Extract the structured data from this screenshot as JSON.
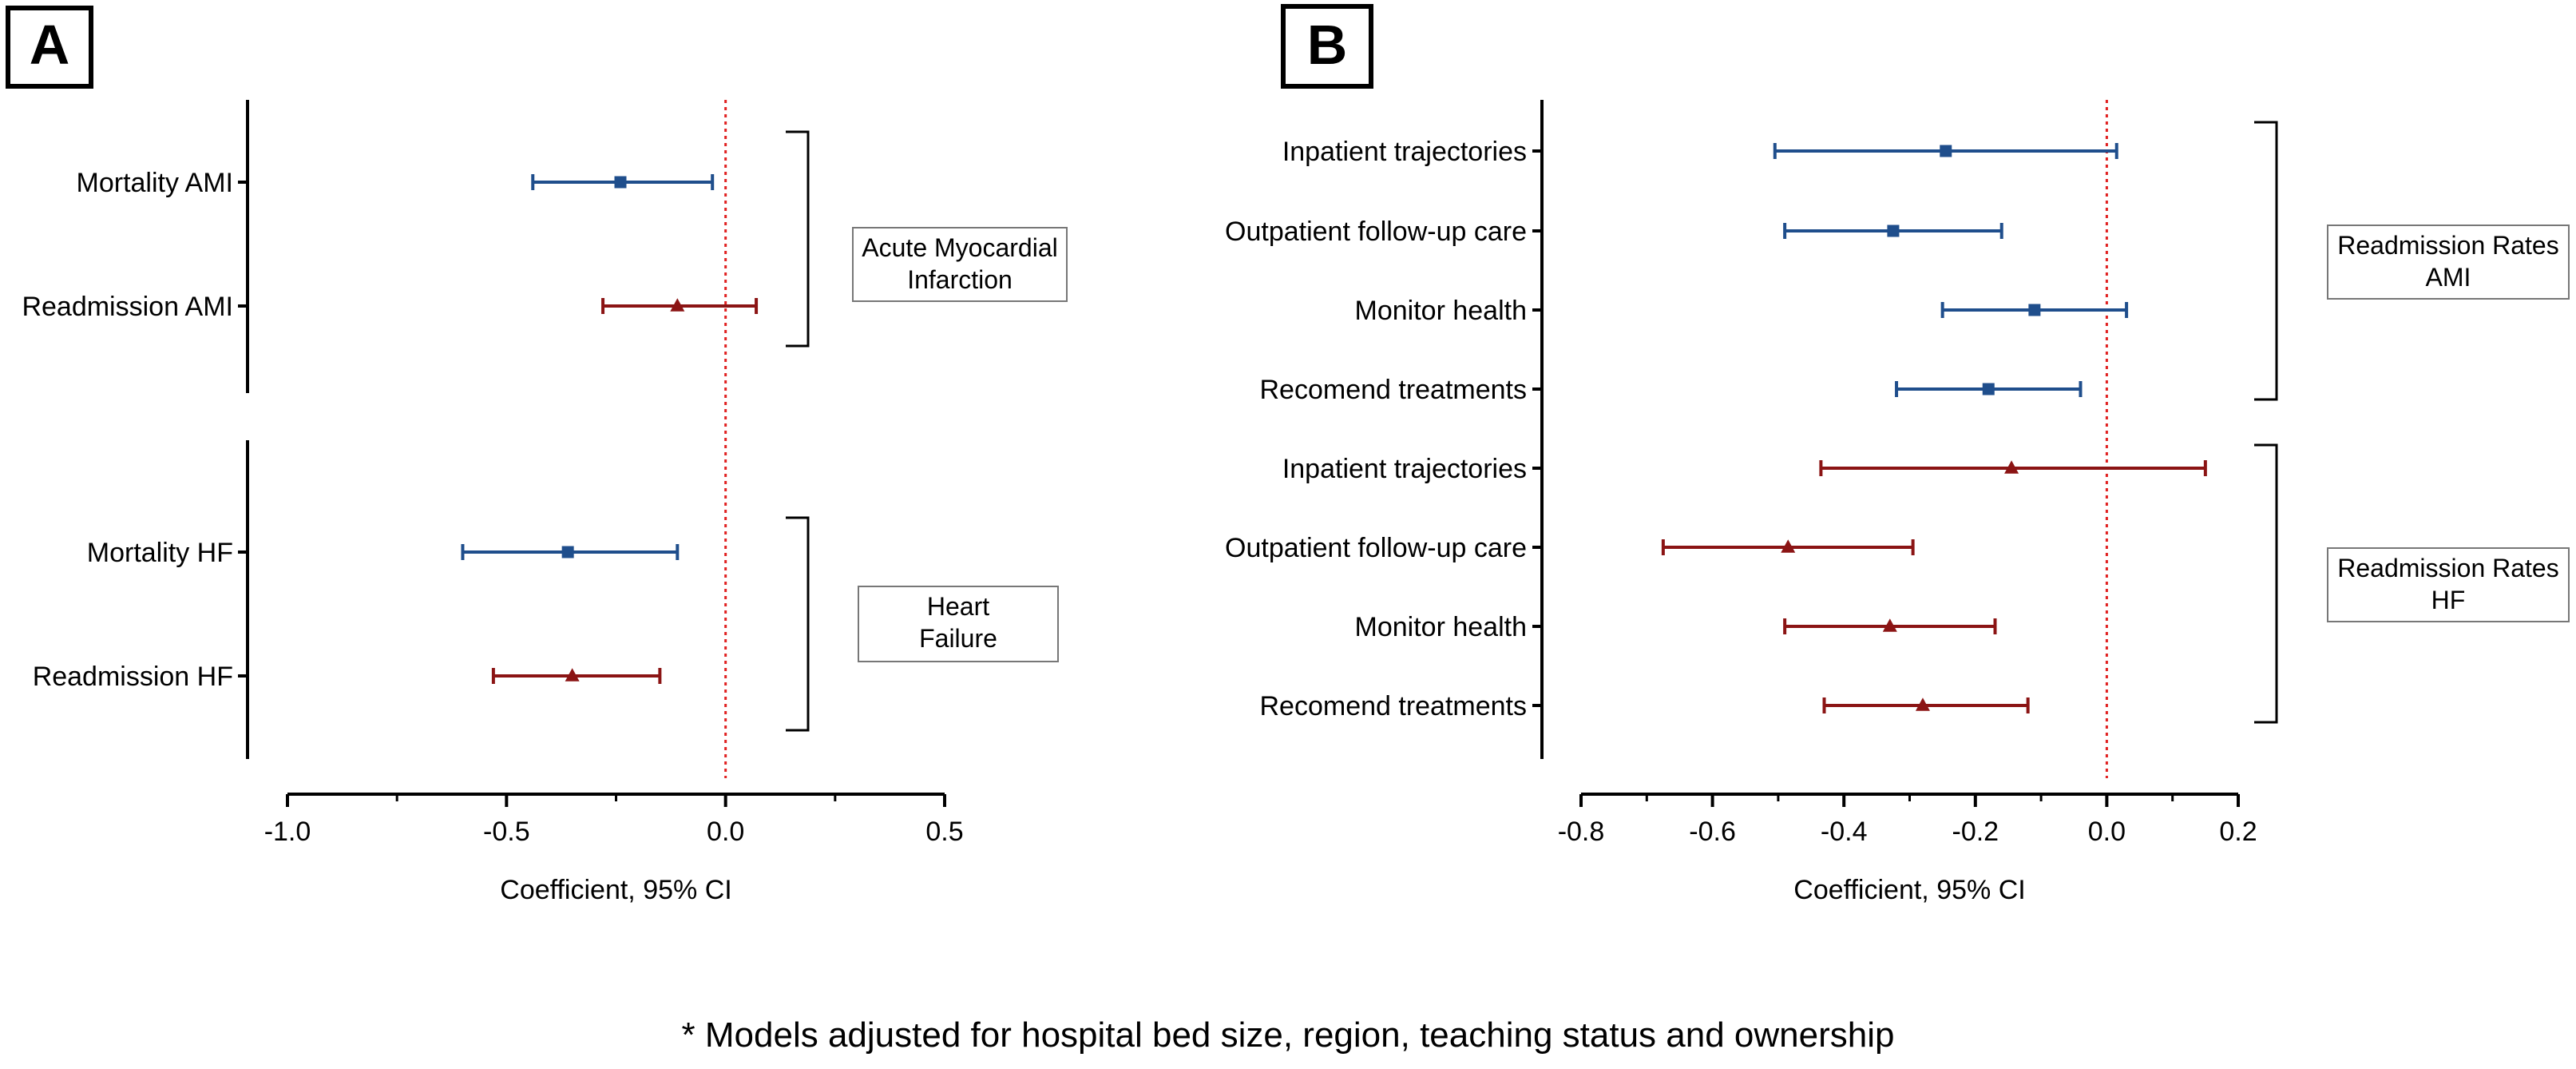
{
  "footnote": "* Models adjusted for hospital bed size, region, teaching status and ownership",
  "colors": {
    "ami": "#1f4e8c",
    "hf": "#8b1414",
    "refline": "#e02020",
    "axis": "#000000"
  },
  "chart_data": [
    {
      "panel_label": "A",
      "type": "forest",
      "xlabel": "Coefficient, 95% CI",
      "xlim": [
        -1.0,
        0.5
      ],
      "xticks": [
        -1.0,
        -0.5,
        0.0,
        0.5
      ],
      "xtick_labels": [
        "-1.0",
        "-0.5",
        "0.0",
        "0.5"
      ],
      "reference_line": 0,
      "groups": [
        {
          "name": "Acute Myocardial Infarction",
          "box_lines": [
            "Acute Myocardial",
            "Infarction"
          ],
          "rows": [
            {
              "label": "Mortality AMI",
              "estimate": -0.24,
              "lower": -0.44,
              "upper": -0.03,
              "series": "ami",
              "marker": "square"
            },
            {
              "label": "Readmission AMI",
              "estimate": -0.11,
              "lower": -0.28,
              "upper": 0.07,
              "series": "hf",
              "marker": "triangle"
            }
          ]
        },
        {
          "name": "Heart Failure",
          "box_lines": [
            "Heart",
            "Failure"
          ],
          "rows": [
            {
              "label": "Mortality HF",
              "estimate": -0.36,
              "lower": -0.6,
              "upper": -0.11,
              "series": "ami",
              "marker": "square"
            },
            {
              "label": "Readmission HF",
              "estimate": -0.35,
              "lower": -0.53,
              "upper": -0.15,
              "series": "hf",
              "marker": "triangle"
            }
          ]
        }
      ]
    },
    {
      "panel_label": "B",
      "type": "forest",
      "xlabel": "Coefficient, 95% CI",
      "xlim": [
        -0.8,
        0.2
      ],
      "xticks": [
        -0.8,
        -0.6,
        -0.4,
        -0.2,
        0.0,
        0.2
      ],
      "xtick_labels": [
        "-0.8",
        "-0.6",
        "-0.4",
        "-0.2",
        "0.0",
        "0.2"
      ],
      "reference_line": 0,
      "groups": [
        {
          "name": "Readmission Rates AMI",
          "box_lines": [
            "Readmission Rates",
            "AMI"
          ],
          "rows": [
            {
              "label": "Inpatient trajectories",
              "estimate": -0.245,
              "lower": -0.505,
              "upper": 0.015,
              "series": "ami",
              "marker": "square"
            },
            {
              "label": "Outpatient follow-up care",
              "estimate": -0.325,
              "lower": -0.49,
              "upper": -0.16,
              "series": "ami",
              "marker": "square"
            },
            {
              "label": "Monitor health",
              "estimate": -0.11,
              "lower": -0.25,
              "upper": 0.03,
              "series": "ami",
              "marker": "square"
            },
            {
              "label": "Recomend treatments",
              "estimate": -0.18,
              "lower": -0.32,
              "upper": -0.04,
              "series": "ami",
              "marker": "square"
            }
          ]
        },
        {
          "name": "Readmission Rates HF",
          "box_lines": [
            "Readmission Rates",
            "HF"
          ],
          "rows": [
            {
              "label": "Inpatient trajectories",
              "estimate": -0.145,
              "lower": -0.435,
              "upper": 0.15,
              "series": "hf",
              "marker": "triangle"
            },
            {
              "label": "Outpatient follow-up care",
              "estimate": -0.485,
              "lower": -0.675,
              "upper": -0.295,
              "series": "hf",
              "marker": "triangle"
            },
            {
              "label": "Monitor health",
              "estimate": -0.33,
              "lower": -0.49,
              "upper": -0.17,
              "series": "hf",
              "marker": "triangle"
            },
            {
              "label": "Recomend treatments",
              "estimate": -0.28,
              "lower": -0.43,
              "upper": -0.12,
              "series": "hf",
              "marker": "triangle"
            }
          ]
        }
      ]
    }
  ]
}
